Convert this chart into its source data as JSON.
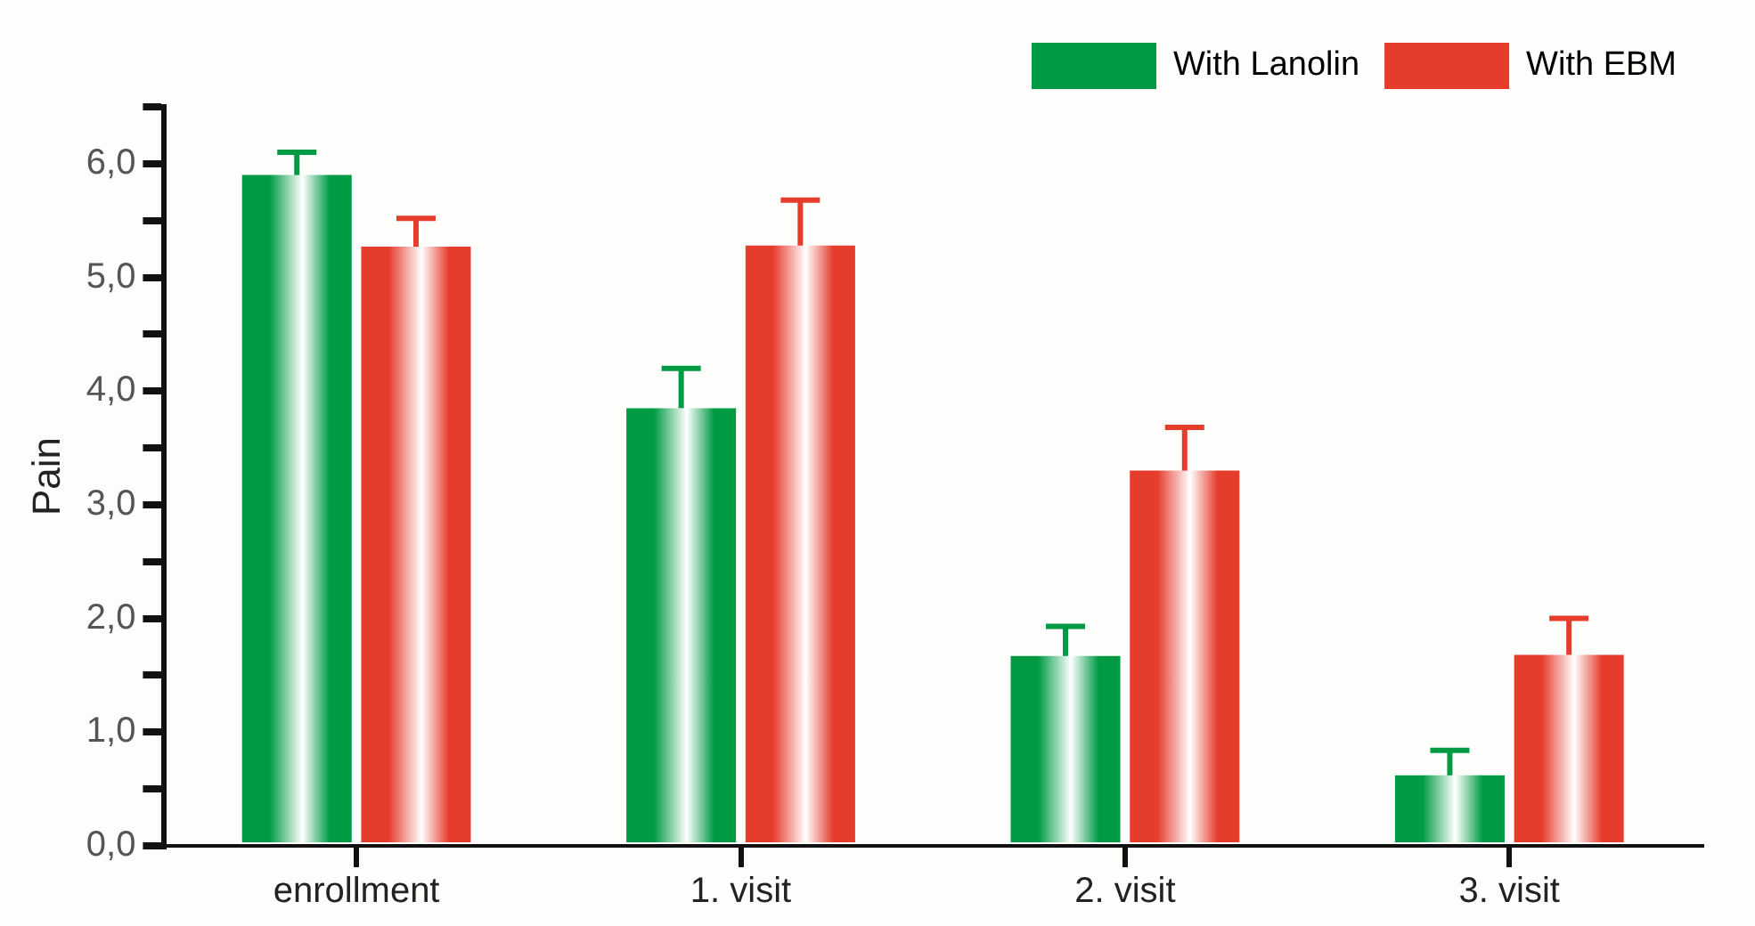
{
  "chart_data": {
    "type": "bar",
    "ylabel": "Pain",
    "categories": [
      "enrollment",
      "1. visit",
      "2. visit",
      "3. visit"
    ],
    "series": [
      {
        "name": "With Lanolin",
        "color": "#009a44",
        "values": [
          5.9,
          3.85,
          1.67,
          0.62
        ],
        "errors": [
          [
            5.9,
            6.1
          ],
          [
            3.85,
            4.2
          ],
          [
            1.67,
            1.93
          ],
          [
            0.62,
            0.84
          ]
        ]
      },
      {
        "name": "With EBM",
        "color": "#e63c2c",
        "values": [
          5.27,
          5.28,
          3.3,
          1.68
        ],
        "errors": [
          [
            5.27,
            5.52
          ],
          [
            5.28,
            5.68
          ],
          [
            3.3,
            3.68
          ],
          [
            1.68,
            2.0
          ]
        ]
      }
    ],
    "ylim": [
      0,
      6.5
    ],
    "yticks": [
      {
        "value": 0,
        "label": "0,0"
      },
      {
        "value": 0.5,
        "label": null
      },
      {
        "value": 1,
        "label": "1,0"
      },
      {
        "value": 1.5,
        "label": null
      },
      {
        "value": 2,
        "label": "2,0"
      },
      {
        "value": 2.5,
        "label": null
      },
      {
        "value": 3,
        "label": "3,0"
      },
      {
        "value": 3.5,
        "label": null
      },
      {
        "value": 4,
        "label": "4,0"
      },
      {
        "value": 4.5,
        "label": null
      },
      {
        "value": 5,
        "label": "5,0"
      },
      {
        "value": 5.5,
        "label": null
      },
      {
        "value": 6,
        "label": "6,0"
      },
      {
        "value": 6.5,
        "label": null
      }
    ],
    "grid": false,
    "legend": "top right"
  }
}
